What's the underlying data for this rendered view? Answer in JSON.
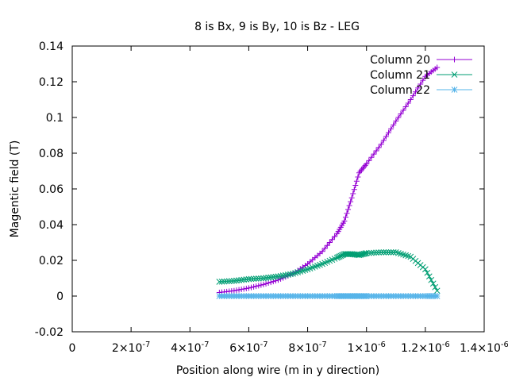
{
  "chart_data": {
    "type": "line",
    "title": "8 is Bx, 9 is By, 10 is Bz - LEG",
    "xlabel": "Position along wire (m in y direction)",
    "ylabel": "Magentic field (T)",
    "xlim": [
      0,
      1.4e-06
    ],
    "ylim": [
      -0.02,
      0.14
    ],
    "grid": false,
    "legend_position": "top-right",
    "x_ticks": [
      {
        "value": 0,
        "label": "0"
      },
      {
        "value": 2e-07,
        "label": "2×10-7",
        "base": "2×10",
        "exp": "-7"
      },
      {
        "value": 4e-07,
        "label": "4×10-7",
        "base": "4×10",
        "exp": "-7"
      },
      {
        "value": 6e-07,
        "label": "6×10-7",
        "base": "6×10",
        "exp": "-7"
      },
      {
        "value": 8e-07,
        "label": "8×10-7",
        "base": "8×10",
        "exp": "-7"
      },
      {
        "value": 1e-06,
        "label": "1×10-6",
        "base": "1×10",
        "exp": "-6"
      },
      {
        "value": 1.2e-06,
        "label": "1.2×10-6",
        "base": "1.2×10",
        "exp": "-6"
      },
      {
        "value": 1.4e-06,
        "label": "1.4×10-6",
        "base": "1.4×10",
        "exp": "-6"
      }
    ],
    "y_ticks": [
      {
        "value": -0.02,
        "label": "-0.02"
      },
      {
        "value": 0,
        "label": "0"
      },
      {
        "value": 0.02,
        "label": "0.02"
      },
      {
        "value": 0.04,
        "label": "0.04"
      },
      {
        "value": 0.06,
        "label": "0.06"
      },
      {
        "value": 0.08,
        "label": "0.08"
      },
      {
        "value": 0.1,
        "label": "0.1"
      },
      {
        "value": 0.12,
        "label": "0.12"
      },
      {
        "value": 0.14,
        "label": "0.14"
      }
    ],
    "x": [
      5e-07,
      5.5e-07,
      6e-07,
      6.5e-07,
      7e-07,
      7.5e-07,
      8e-07,
      8.5e-07,
      9e-07,
      9.25e-07,
      9.5e-07,
      9.75e-07,
      1e-06,
      1.05e-06,
      1.1e-06,
      1.15e-06,
      1.2e-06,
      1.24e-06
    ],
    "series": [
      {
        "name": "Column 20",
        "color": "#9400d3",
        "marker": "plus",
        "values": [
          0.002,
          0.003,
          0.0045,
          0.0065,
          0.009,
          0.0125,
          0.018,
          0.025,
          0.035,
          0.042,
          0.055,
          0.069,
          0.074,
          0.085,
          0.098,
          0.11,
          0.123,
          0.128
        ]
      },
      {
        "name": "Column 21",
        "color": "#009e73",
        "marker": "x",
        "values": [
          0.008,
          0.0085,
          0.0095,
          0.01,
          0.011,
          0.0125,
          0.015,
          0.018,
          0.0215,
          0.0235,
          0.0235,
          0.023,
          0.024,
          0.0245,
          0.0245,
          0.022,
          0.015,
          0.003
        ]
      },
      {
        "name": "Column 22",
        "color": "#56b4e9",
        "marker": "star",
        "values": [
          0,
          0,
          0,
          0,
          0,
          0,
          0,
          0,
          0,
          0,
          0,
          0,
          0,
          0,
          0,
          0,
          0,
          0
        ]
      }
    ]
  }
}
